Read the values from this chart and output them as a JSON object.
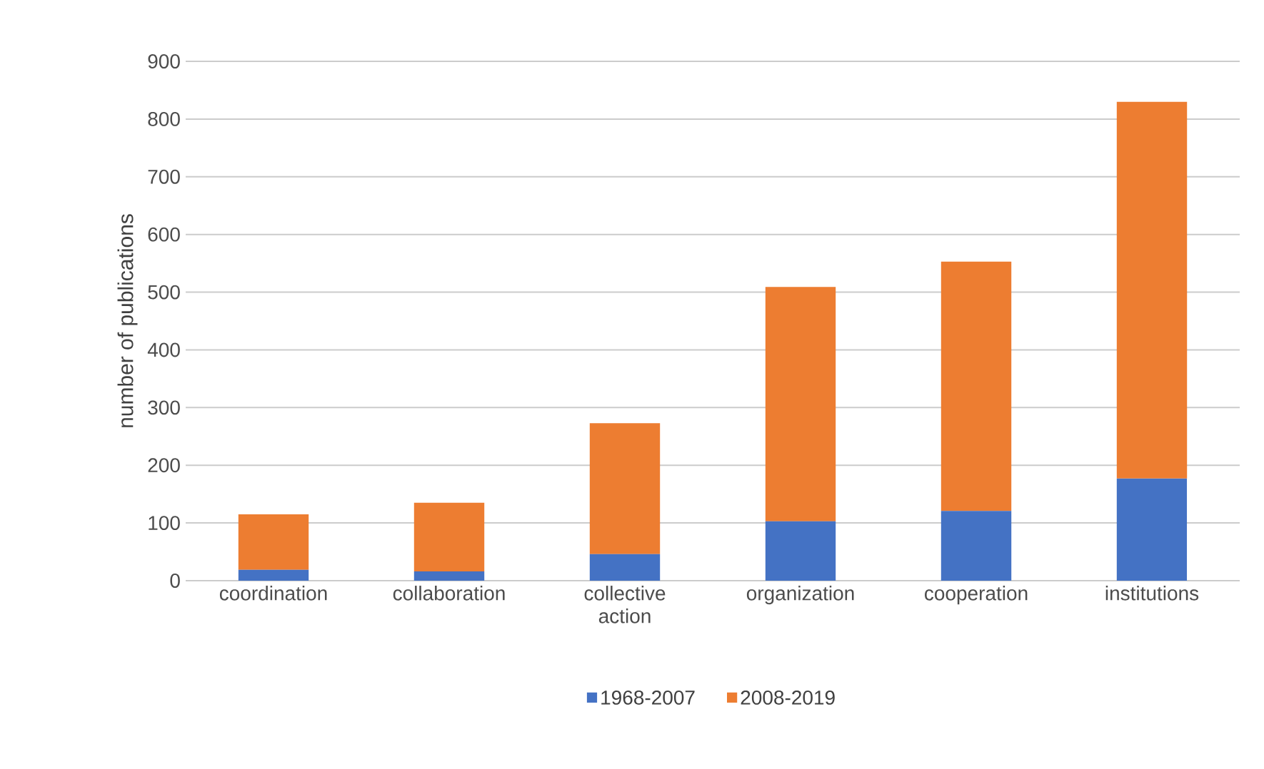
{
  "chart_data": {
    "type": "bar",
    "stacked": true,
    "ylabel": "number of publications",
    "categories": [
      "coordination",
      "collaboration",
      "collective action",
      "organization",
      "cooperation",
      "institutions"
    ],
    "series": [
      {
        "name": "1968-2007",
        "color": "#4472c4",
        "values": [
          19,
          16,
          46,
          103,
          121,
          177
        ]
      },
      {
        "name": "2008-2019",
        "color": "#ed7d31",
        "values": [
          96,
          119,
          227,
          406,
          432,
          653
        ]
      }
    ],
    "ylim": [
      0,
      900
    ],
    "yticks": [
      0,
      100,
      200,
      300,
      400,
      500,
      600,
      700,
      800,
      900
    ],
    "grid": "y",
    "legend": "bottom"
  }
}
